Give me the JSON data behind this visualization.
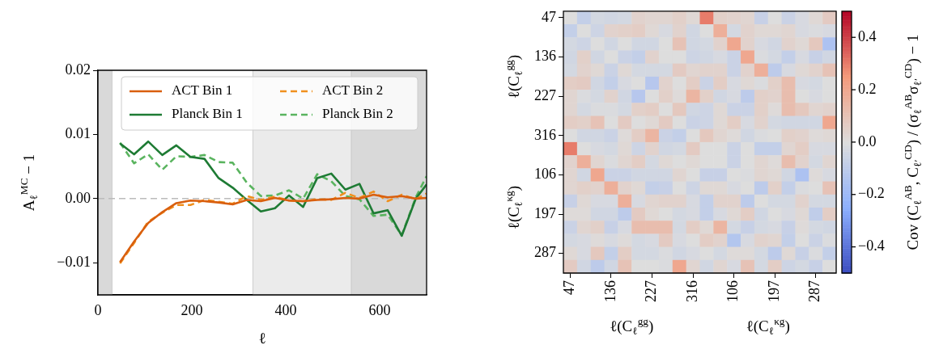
{
  "chart_data": [
    {
      "type": "line",
      "xlabel": "ℓ",
      "ylabel": "A$_{ℓ}$$^{MC}$ − 1",
      "x": [
        47,
        77,
        107,
        137,
        167,
        197,
        227,
        257,
        287,
        317,
        347,
        377,
        407,
        437,
        467,
        497,
        527,
        557,
        587,
        617,
        647,
        677,
        700
      ],
      "xlim": [
        0,
        700
      ],
      "xticks": [
        0,
        200,
        400,
        600
      ],
      "ylim": [
        -0.015,
        0.02
      ],
      "yticks": [
        {
          "value": -0.01,
          "label": "−0.01"
        },
        {
          "value": 0,
          "label": "0.00"
        },
        {
          "value": 0.01,
          "label": "0.01"
        },
        {
          "value": 0.02,
          "label": "0.02"
        }
      ],
      "legend": "top",
      "ref_lines": [
        {
          "axis": "y",
          "value": 0,
          "color": "#bbbbbb",
          "line_style": "dashed"
        }
      ],
      "bands": [
        {
          "axis": "x",
          "from": 0,
          "to": 30,
          "color": "#d9d9d9"
        },
        {
          "axis": "x",
          "from": 330,
          "to": 540,
          "color": "#ebebeb"
        },
        {
          "axis": "x",
          "from": 540,
          "to": 700,
          "color": "#d9d9d9"
        }
      ],
      "series": [
        {
          "name": "ACT Bin 1",
          "color": "#d95f0e",
          "line_style": "solid",
          "values": [
            -0.0099,
            -0.0067,
            -0.0038,
            -0.0021,
            -0.0007,
            -0.0003,
            -0.0004,
            -0.0006,
            -0.0009,
            -0.0002,
            -0.0004,
            0.0001,
            -0.0003,
            -0.0004,
            -0.0002,
            -0.0001,
            0.0001,
            0,
            0.0006,
            0.0002,
            0.0004,
            0,
            0.0001
          ]
        },
        {
          "name": "ACT Bin 2",
          "color": "#f0901e",
          "line_style": "dashed",
          "values": [
            -0.0101,
            -0.0069,
            -0.0036,
            -0.0022,
            -0.001,
            -0.001,
            -0.0002,
            -0.0005,
            -0.0008,
            0.0004,
            -0.0002,
            0.0003,
            -0.0003,
            -0.0004,
            -0.0001,
            -0.0002,
            0.0009,
            0.0001,
            0.0011,
            -0.0004,
            0.0006,
            -0.0001,
            0.0008
          ]
        },
        {
          "name": "Planck Bin 1",
          "color": "#1e7b34",
          "line_style": "solid",
          "values": [
            0.0086,
            0.0069,
            0.0089,
            0.0068,
            0.0083,
            0.0065,
            0.0062,
            0.0032,
            0.0017,
            -0.0002,
            -0.002,
            -0.0015,
            0.0005,
            -0.0013,
            0.0032,
            0.0039,
            0.0014,
            0.0023,
            -0.0023,
            -0.0018,
            -0.0058,
            0,
            0.0022
          ]
        },
        {
          "name": "Planck Bin 2",
          "color": "#5ab45f",
          "line_style": "dashed",
          "values": [
            0.0087,
            0.0055,
            0.0069,
            0.0045,
            0.0066,
            0.0065,
            0.0068,
            0.0057,
            0.0056,
            0.0025,
            0.0004,
            0.0005,
            0.0013,
            0,
            0.0038,
            0.0027,
            0.0004,
            -0.0001,
            -0.0027,
            -0.0025,
            -0.0057,
            0.0002,
            0.0035
          ]
        }
      ]
    },
    {
      "type": "heatmap",
      "xlabel": "ℓ(C$_{ℓ}$$^{gg}$)",
      "ylabel": "ℓ(C$_{ℓ}$$^{gg}$)",
      "annotations": [
        "ℓ(C$_{ℓ}$$^{κg}$)",
        "ℓ(C$_{ℓ}$$^{κg}$)"
      ],
      "clabel": "Cov (C$_{ℓ}$$^{AB}$, C$_{ℓ′}$$^{CD}$) / (σ$_{ℓ}$$^{AB}$σ$_{ℓ′}$$^{CD}$) − 1",
      "categories": [
        "47",
        null,
        null,
        "136",
        null,
        null,
        "227",
        null,
        null,
        "316",
        null,
        null,
        "106",
        null,
        null,
        "197",
        null,
        null,
        "287",
        null
      ],
      "y_categories": [
        "47",
        null,
        null,
        "136",
        null,
        null,
        "227",
        null,
        null,
        "316",
        null,
        null,
        "106",
        null,
        null,
        "197",
        null,
        null,
        "287",
        null
      ],
      "clim": [
        -0.5,
        0.5
      ],
      "cticks": [
        {
          "value": -0.4,
          "label": "−0.4"
        },
        {
          "value": -0.2,
          "label": "−0.2"
        },
        {
          "value": 0,
          "label": "0.0"
        },
        0.2,
        0.4
      ],
      "cells": [
        [
          0,
          -0.08,
          -0.03,
          -0.04,
          -0.03,
          0.04,
          0.03,
          0.03,
          0.05,
          0.02,
          0.3,
          0.05,
          0.04,
          0.03,
          -0.07,
          0,
          -0.06,
          -0.02,
          0.02,
          0.07
        ],
        [
          -0.08,
          0,
          -0.05,
          0.04,
          0.05,
          0.06,
          0.02,
          -0.02,
          0.04,
          -0.04,
          0,
          0.17,
          -0.03,
          0.04,
          0.02,
          0.02,
          0.03,
          -0.02,
          -0.01,
          -0.02
        ],
        [
          -0.03,
          -0.05,
          0,
          -0.04,
          0,
          -0.04,
          -0.04,
          0,
          0.1,
          -0.04,
          -0.03,
          0.04,
          0.2,
          0.04,
          -0.02,
          -0.04,
          0.04,
          0.02,
          0.08,
          -0.15
        ],
        [
          -0.04,
          0.05,
          -0.04,
          0,
          -0.06,
          -0.08,
          0.04,
          0,
          0,
          -0.05,
          -0.04,
          -0.02,
          -0.06,
          0.2,
          -0.01,
          -0.03,
          -0.08,
          -0.02,
          -0.07,
          -0.04
        ],
        [
          -0.03,
          0.04,
          0.02,
          -0.06,
          0.02,
          -0.03,
          -0.03,
          -0.03,
          0.07,
          0.03,
          0.04,
          0.04,
          -0.06,
          0.04,
          0.17,
          -0.1,
          -0.02,
          0.02,
          0.04,
          0.1
        ],
        [
          0.06,
          0.07,
          -0.04,
          -0.08,
          -0.02,
          0,
          -0.12,
          0.04,
          0,
          0.06,
          -0.06,
          0.06,
          -0.02,
          0.02,
          -0.01,
          0.05,
          0.12,
          -0.02,
          -0.03,
          0
        ],
        [
          0.03,
          -0.01,
          -0.03,
          0.04,
          -0.04,
          -0.12,
          0,
          0.05,
          0.01,
          0.15,
          0.05,
          -0.04,
          -0.02,
          -0.1,
          0.05,
          0.04,
          0.12,
          0,
          -0.02,
          0
        ],
        [
          0.03,
          -0.03,
          -0.01,
          -0.01,
          -0.03,
          0.05,
          0.06,
          0,
          0.08,
          -0.04,
          -0.05,
          0.02,
          -0.06,
          -0.06,
          0.05,
          0.01,
          0.12,
          0.08,
          0.03,
          0.04
        ],
        [
          0.06,
          0.05,
          0.1,
          0,
          0.07,
          0,
          0.02,
          0.07,
          0,
          -0.06,
          -0.05,
          0.02,
          0.06,
          -0.02,
          0.04,
          -0.03,
          -0.04,
          -0.04,
          -0.04,
          0.2
        ],
        [
          0,
          -0.04,
          -0.04,
          -0.06,
          0.01,
          0.06,
          0.15,
          -0.06,
          -0.08,
          0,
          0.08,
          0.03,
          0.01,
          -0.04,
          -0.01,
          0,
          0.05,
          0.04,
          0.01,
          0.02
        ],
        [
          0.3,
          0,
          -0.02,
          -0.03,
          0.02,
          -0.05,
          0.04,
          -0.04,
          -0.03,
          0.07,
          0,
          0,
          -0.06,
          0,
          -0.08,
          -0.08,
          0.03,
          0.06,
          -0.02,
          -0.02
        ],
        [
          0.04,
          0.17,
          0.03,
          -0.01,
          0.03,
          0.06,
          -0.03,
          0.02,
          0,
          0.02,
          0,
          0,
          -0.06,
          0,
          0.03,
          0.01,
          0.12,
          0.04,
          -0.03,
          0.03
        ],
        [
          0.03,
          -0.04,
          0.2,
          -0.06,
          -0.06,
          -0.04,
          -0.04,
          -0.04,
          0.03,
          0,
          -0.07,
          -0.07,
          0,
          -0.01,
          0.03,
          0.02,
          -0.04,
          -0.15,
          0.01,
          -0.02
        ],
        [
          0.03,
          0.05,
          0.04,
          0.17,
          0.04,
          0.02,
          -0.08,
          -0.07,
          0,
          -0.05,
          0.02,
          0.02,
          -0.02,
          0,
          -0.1,
          0.05,
          -0.08,
          -0.01,
          0,
          0.1
        ],
        [
          -0.07,
          0.02,
          -0.02,
          -0.02,
          0.17,
          -0.02,
          0.03,
          0.04,
          0.04,
          -0.02,
          -0.08,
          0.04,
          0.04,
          -0.1,
          0,
          -0.03,
          -0.03,
          0.04,
          -0.03,
          -0.03
        ],
        [
          0.01,
          0.01,
          -0.04,
          -0.04,
          -0.1,
          0.07,
          0.02,
          0,
          -0.03,
          -0.02,
          -0.08,
          -0.02,
          0.02,
          0.06,
          -0.04,
          0,
          -0.02,
          0.02,
          -0.09,
          0.06
        ],
        [
          -0.06,
          0.03,
          0.05,
          -0.07,
          -0.02,
          0.12,
          0.12,
          0.12,
          -0.03,
          0.06,
          0.02,
          0.15,
          -0.03,
          -0.07,
          -0.03,
          -0.02,
          -0.07,
          0.01,
          -0.03,
          -0.04
        ],
        [
          -0.03,
          -0.02,
          0.01,
          -0.02,
          0.01,
          -0.03,
          -0.02,
          0.07,
          -0.02,
          0,
          0.06,
          0.04,
          -0.13,
          -0.02,
          0.04,
          0.03,
          -0.08,
          0,
          -0.06,
          -0.01
        ],
        [
          0.02,
          -0.02,
          0.08,
          -0.08,
          0.06,
          -0.03,
          -0.03,
          -0.01,
          -0.04,
          -0.02,
          0,
          -0.03,
          0.01,
          0.01,
          -0.03,
          -0.1,
          0.02,
          -0.07,
          -0.01,
          -0.08
        ],
        [
          0.07,
          -0.04,
          -0.1,
          -0.04,
          0.1,
          0,
          0,
          -0.01,
          0.2,
          0.03,
          -0.04,
          0.03,
          -0.02,
          0.1,
          -0.03,
          0.06,
          -0.05,
          -0.03,
          -0.07,
          0
        ]
      ]
    }
  ]
}
